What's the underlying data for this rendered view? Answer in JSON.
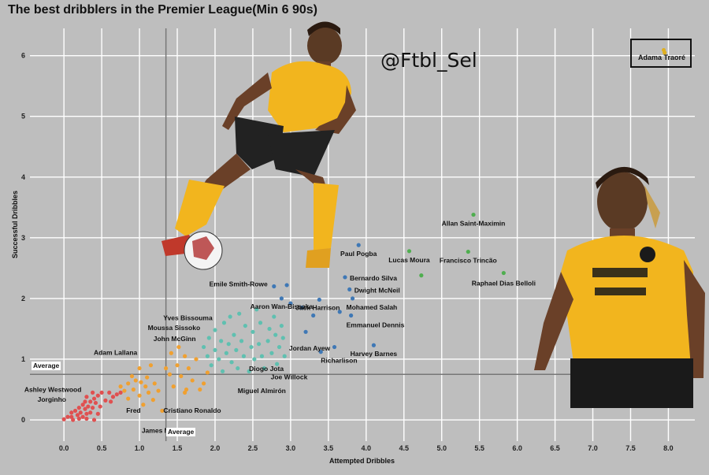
{
  "title": "The best dribblers in the Premier League(Min 6 90s)",
  "watermark": "@Ftbl_Sel",
  "legend": {
    "label": "Adama Traoré",
    "color": "#e0b020"
  },
  "average_label_x": "Average",
  "average_label_y": "Average",
  "colors": {
    "background": "#bebebe",
    "grid": "#ffffff",
    "cluster_red": "#e05050",
    "cluster_orange": "#f0a030",
    "cluster_teal": "#5fc0b0",
    "cluster_blue": "#3f78b5",
    "cluster_green": "#4fae4f",
    "jersey_gold": "#f2b51e"
  },
  "chart_data": {
    "type": "scatter",
    "title": "The best dribblers in the Premier League(Min 6 90s)",
    "xlabel": "Attempted Dribbles",
    "ylabel": "Successful Dribbles",
    "xlim": [
      -0.45,
      8.35
    ],
    "ylim": [
      -0.35,
      6.45
    ],
    "xticks": [
      "0.0",
      "0.5",
      "1.0",
      "1.5",
      "2.0",
      "2.5",
      "3.0",
      "3.5",
      "4.0",
      "4.5",
      "5.0",
      "5.5",
      "6.0",
      "6.5",
      "7.0",
      "7.5",
      "8.0"
    ],
    "yticks": [
      "0",
      "1",
      "2",
      "3",
      "4",
      "5",
      "6"
    ],
    "average_x": 1.35,
    "average_y": 0.75,
    "grid": true,
    "legend_position": "top-right",
    "series": [
      {
        "cluster": "red",
        "points": [
          [
            0.0,
            0.01
          ],
          [
            0.05,
            0.05
          ],
          [
            0.1,
            0.05
          ],
          [
            0.1,
            0.12
          ],
          [
            0.12,
            0.0
          ],
          [
            0.15,
            0.15
          ],
          [
            0.18,
            0.08
          ],
          [
            0.2,
            0.02
          ],
          [
            0.2,
            0.2
          ],
          [
            0.22,
            0.12
          ],
          [
            0.25,
            0.25
          ],
          [
            0.25,
            0.05
          ],
          [
            0.28,
            0.3
          ],
          [
            0.28,
            0.18
          ],
          [
            0.3,
            0.1
          ],
          [
            0.3,
            0.38
          ],
          [
            0.32,
            0.22
          ],
          [
            0.35,
            0.3
          ],
          [
            0.35,
            0.12
          ],
          [
            0.38,
            0.45
          ],
          [
            0.38,
            0.2
          ],
          [
            0.4,
            0.35
          ],
          [
            0.42,
            0.28
          ],
          [
            0.45,
            0.4
          ],
          [
            0.45,
            0.1
          ],
          [
            0.48,
            0.22
          ],
          [
            0.5,
            0.45
          ],
          [
            0.55,
            0.32
          ],
          [
            0.6,
            0.45
          ],
          [
            0.62,
            0.3
          ],
          [
            0.65,
            0.38
          ],
          [
            0.7,
            0.42
          ],
          [
            0.75,
            0.45
          ],
          [
            0.3,
            0.02
          ],
          [
            0.4,
            0.0
          ]
        ]
      },
      {
        "cluster": "orange",
        "points": [
          [
            0.75,
            0.55
          ],
          [
            0.8,
            0.48
          ],
          [
            0.85,
            0.6
          ],
          [
            0.85,
            0.35
          ],
          [
            0.9,
            0.72
          ],
          [
            0.92,
            0.5
          ],
          [
            0.95,
            0.65
          ],
          [
            1.0,
            0.4
          ],
          [
            1.0,
            0.85
          ],
          [
            1.02,
            0.62
          ],
          [
            1.05,
            0.25
          ],
          [
            1.08,
            0.55
          ],
          [
            1.1,
            0.7
          ],
          [
            1.12,
            0.45
          ],
          [
            1.15,
            0.9
          ],
          [
            1.18,
            0.33
          ],
          [
            1.2,
            0.6
          ],
          [
            1.25,
            0.48
          ],
          [
            1.3,
            0.15
          ],
          [
            1.35,
            0.85
          ],
          [
            1.4,
            0.75
          ],
          [
            1.42,
            1.1
          ],
          [
            1.45,
            0.55
          ],
          [
            1.5,
            0.9
          ],
          [
            1.52,
            1.2
          ],
          [
            1.55,
            0.72
          ],
          [
            1.6,
            1.05
          ],
          [
            1.62,
            0.5
          ],
          [
            1.65,
            0.85
          ],
          [
            1.7,
            0.65
          ],
          [
            1.75,
            1.0
          ],
          [
            1.8,
            0.5
          ],
          [
            1.85,
            0.6
          ],
          [
            1.9,
            0.78
          ],
          [
            1.6,
            0.45
          ]
        ]
      },
      {
        "cluster": "teal",
        "points": [
          [
            1.85,
            1.2
          ],
          [
            1.9,
            1.05
          ],
          [
            1.92,
            1.35
          ],
          [
            1.95,
            0.9
          ],
          [
            2.0,
            1.15
          ],
          [
            2.0,
            1.48
          ],
          [
            2.05,
            1.0
          ],
          [
            2.08,
            1.3
          ],
          [
            2.1,
            0.8
          ],
          [
            2.12,
            1.6
          ],
          [
            2.15,
            1.1
          ],
          [
            2.18,
            1.25
          ],
          [
            2.2,
            1.7
          ],
          [
            2.22,
            0.95
          ],
          [
            2.25,
            1.4
          ],
          [
            2.28,
            1.15
          ],
          [
            2.3,
            0.85
          ],
          [
            2.32,
            1.75
          ],
          [
            2.35,
            1.3
          ],
          [
            2.38,
            1.05
          ],
          [
            2.4,
            1.55
          ],
          [
            2.45,
            0.8
          ],
          [
            2.48,
            1.2
          ],
          [
            2.5,
            1.45
          ],
          [
            2.52,
            1.0
          ],
          [
            2.55,
            1.82
          ],
          [
            2.58,
            1.25
          ],
          [
            2.6,
            1.6
          ],
          [
            2.62,
            1.05
          ],
          [
            2.65,
            0.85
          ],
          [
            2.7,
            1.3
          ],
          [
            2.72,
            1.5
          ],
          [
            2.75,
            1.1
          ],
          [
            2.78,
            1.7
          ],
          [
            2.8,
            1.4
          ],
          [
            2.82,
            0.92
          ],
          [
            2.85,
            1.2
          ],
          [
            2.88,
            1.55
          ],
          [
            2.9,
            1.35
          ],
          [
            2.92,
            1.05
          ]
        ]
      },
      {
        "cluster": "blue",
        "points": [
          [
            2.78,
            2.2
          ],
          [
            2.88,
            2.0
          ],
          [
            2.95,
            2.22
          ],
          [
            3.0,
            1.92
          ],
          [
            3.15,
            1.85
          ],
          [
            3.2,
            1.45
          ],
          [
            3.3,
            1.72
          ],
          [
            3.38,
            1.98
          ],
          [
            3.4,
            1.12
          ],
          [
            3.58,
            1.2
          ],
          [
            3.65,
            1.78
          ],
          [
            3.72,
            2.35
          ],
          [
            3.78,
            2.15
          ],
          [
            3.8,
            1.72
          ],
          [
            3.82,
            2.0
          ],
          [
            3.9,
            2.88
          ],
          [
            4.1,
            1.23
          ]
        ]
      },
      {
        "cluster": "green",
        "points": [
          [
            4.57,
            2.78
          ],
          [
            4.73,
            2.38
          ],
          [
            5.35,
            2.77
          ],
          [
            5.42,
            3.38
          ],
          [
            5.82,
            2.42
          ]
        ]
      },
      {
        "cluster": "gold",
        "points": [
          [
            7.95,
            6.05
          ]
        ]
      }
    ],
    "labels": [
      {
        "text": "Adama Traoré",
        "x": 7.95,
        "y": 6.05
      },
      {
        "text": "Allan Saint-Maximin",
        "x": 5.42,
        "y": 3.38
      },
      {
        "text": "Paul Pogba",
        "x": 3.9,
        "y": 2.88
      },
      {
        "text": "Lucas Moura",
        "x": 4.57,
        "y": 2.78
      },
      {
        "text": "Francisco Trincão",
        "x": 5.35,
        "y": 2.77
      },
      {
        "text": "Bernardo Silva",
        "x": 3.72,
        "y": 2.35
      },
      {
        "text": "Raphael Dias Belloli",
        "x": 5.82,
        "y": 2.42
      },
      {
        "text": "Emile Smith-Rowe",
        "x": 2.78,
        "y": 2.2
      },
      {
        "text": "Dwight McNeil",
        "x": 3.78,
        "y": 2.15
      },
      {
        "text": "Aaron Wan-Bissaka",
        "x": 2.88,
        "y": 2.0
      },
      {
        "text": "Mohamed Salah",
        "x": 3.82,
        "y": 2.0
      },
      {
        "text": "Jack Harrison",
        "x": 3.38,
        "y": 1.98
      },
      {
        "text": "Emmanuel Dennis",
        "x": 3.8,
        "y": 1.72
      },
      {
        "text": "Yves Bissouma",
        "x": 2.12,
        "y": 1.6
      },
      {
        "text": "Moussa Sissoko",
        "x": 1.95,
        "y": 1.48
      },
      {
        "text": "John McGinn",
        "x": 1.85,
        "y": 1.35
      },
      {
        "text": "Jordan Ayew",
        "x": 3.0,
        "y": 1.3
      },
      {
        "text": "Harvey Barnes",
        "x": 4.1,
        "y": 1.23
      },
      {
        "text": "Adam Lallana",
        "x": 1.2,
        "y": 1.1
      },
      {
        "text": "Richarlison",
        "x": 3.4,
        "y": 1.12
      },
      {
        "text": "Diogo Jota",
        "x": 2.45,
        "y": 0.92
      },
      {
        "text": "Joe Willock",
        "x": 2.82,
        "y": 0.8
      },
      {
        "text": "Miguel Almirón",
        "x": 2.3,
        "y": 0.65
      },
      {
        "text": "Ashley Westwood",
        "x": 0.5,
        "y": 0.62
      },
      {
        "text": "Jorginho",
        "x": 0.28,
        "y": 0.48
      },
      {
        "text": "Fred",
        "x": 0.72,
        "y": 0.3
      },
      {
        "text": "Cristiano Ronaldo",
        "x": 1.4,
        "y": 0.3
      },
      {
        "text": "James Maddison",
        "x": 1.3,
        "y": 0.1
      }
    ]
  }
}
